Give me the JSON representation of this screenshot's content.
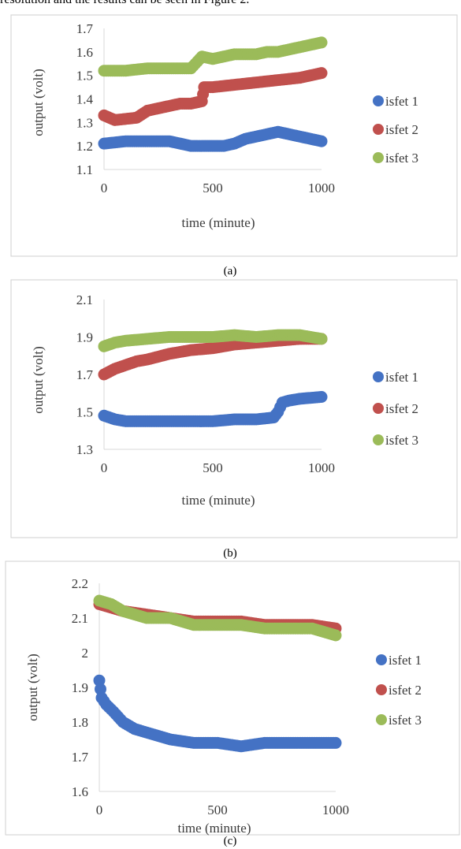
{
  "intro_text": "resolution and the results can be seen in Figure 2.",
  "colors": {
    "isfet1": "#4472C4",
    "isfet2": "#C0504D",
    "isfet3": "#9BBB59"
  },
  "chart_data": [
    {
      "type": "scatter",
      "caption": "(a)",
      "xlabel": "time (minute)",
      "ylabel": "output (volt)",
      "xlim": [
        0,
        1000
      ],
      "ylim": [
        1.1,
        1.7
      ],
      "xticks": [
        "0",
        "500",
        "1000"
      ],
      "yticks": [
        "1.1",
        "1.2",
        "1.3",
        "1.4",
        "1.5",
        "1.6",
        "1.7"
      ],
      "legend_position": "right",
      "grid": false,
      "series": [
        {
          "name": "isfet 1",
          "color": "#4472C4",
          "x": [
            0,
            100,
            200,
            300,
            400,
            450,
            500,
            550,
            600,
            650,
            700,
            750,
            800,
            850,
            900,
            950,
            1000
          ],
          "y": [
            1.21,
            1.22,
            1.22,
            1.22,
            1.2,
            1.2,
            1.2,
            1.2,
            1.21,
            1.23,
            1.24,
            1.25,
            1.26,
            1.25,
            1.24,
            1.23,
            1.22
          ]
        },
        {
          "name": "isfet 2",
          "color": "#C0504D",
          "x": [
            0,
            50,
            150,
            200,
            250,
            300,
            350,
            400,
            450,
            460,
            500,
            600,
            700,
            800,
            900,
            1000
          ],
          "y": [
            1.33,
            1.31,
            1.32,
            1.35,
            1.36,
            1.37,
            1.38,
            1.38,
            1.39,
            1.45,
            1.45,
            1.46,
            1.47,
            1.48,
            1.49,
            1.51
          ]
        },
        {
          "name": "isfet 3",
          "color": "#9BBB59",
          "x": [
            0,
            100,
            200,
            300,
            400,
            420,
            450,
            500,
            600,
            700,
            750,
            800,
            900,
            1000
          ],
          "y": [
            1.52,
            1.52,
            1.53,
            1.53,
            1.53,
            1.55,
            1.58,
            1.57,
            1.59,
            1.59,
            1.6,
            1.6,
            1.62,
            1.64
          ]
        }
      ]
    },
    {
      "type": "scatter",
      "caption": "(b)",
      "xlabel": "time (minute)",
      "ylabel": "output (volt)",
      "xlim": [
        0,
        1000
      ],
      "ylim": [
        1.3,
        2.1
      ],
      "xticks": [
        "0",
        "500",
        "1000"
      ],
      "yticks": [
        "1.3",
        "1.5",
        "1.7",
        "1.9",
        "2.1"
      ],
      "legend_position": "right",
      "grid": false,
      "series": [
        {
          "name": "isfet 1",
          "color": "#4472C4",
          "x": [
            0,
            50,
            100,
            200,
            300,
            400,
            500,
            600,
            700,
            780,
            800,
            820,
            850,
            900,
            1000
          ],
          "y": [
            1.48,
            1.46,
            1.45,
            1.45,
            1.45,
            1.45,
            1.45,
            1.46,
            1.46,
            1.47,
            1.5,
            1.55,
            1.56,
            1.57,
            1.58
          ]
        },
        {
          "name": "isfet 2",
          "color": "#C0504D",
          "x": [
            0,
            50,
            100,
            150,
            200,
            300,
            400,
            500,
            600,
            700,
            800,
            900,
            1000
          ],
          "y": [
            1.7,
            1.73,
            1.75,
            1.77,
            1.78,
            1.81,
            1.83,
            1.84,
            1.86,
            1.87,
            1.88,
            1.89,
            1.89
          ]
        },
        {
          "name": "isfet 3",
          "color": "#9BBB59",
          "x": [
            0,
            50,
            100,
            200,
            300,
            400,
            500,
            600,
            700,
            800,
            900,
            1000
          ],
          "y": [
            1.85,
            1.87,
            1.88,
            1.89,
            1.9,
            1.9,
            1.9,
            1.91,
            1.9,
            1.91,
            1.91,
            1.89
          ]
        }
      ]
    },
    {
      "type": "scatter",
      "caption": "(c)",
      "xlabel": "time (minute)",
      "ylabel": "output (volt)",
      "xlim": [
        0,
        1000
      ],
      "ylim": [
        1.6,
        2.2
      ],
      "xticks": [
        "0",
        "500",
        "1000"
      ],
      "yticks": [
        "1.6",
        "1.7",
        "1.8",
        "1.9",
        "2",
        "2.1",
        "2.2"
      ],
      "legend_position": "right",
      "grid": false,
      "series": [
        {
          "name": "isfet 1",
          "color": "#4472C4",
          "x": [
            0,
            10,
            30,
            60,
            100,
            150,
            200,
            250,
            300,
            400,
            500,
            600,
            700,
            800,
            900,
            1000
          ],
          "y": [
            1.92,
            1.87,
            1.85,
            1.83,
            1.8,
            1.78,
            1.77,
            1.76,
            1.75,
            1.74,
            1.74,
            1.73,
            1.74,
            1.74,
            1.74,
            1.74
          ]
        },
        {
          "name": "isfet 2",
          "color": "#C0504D",
          "x": [
            0,
            50,
            100,
            200,
            300,
            400,
            500,
            600,
            700,
            800,
            900,
            1000
          ],
          "y": [
            2.14,
            2.13,
            2.12,
            2.11,
            2.1,
            2.09,
            2.09,
            2.09,
            2.08,
            2.08,
            2.08,
            2.07
          ]
        },
        {
          "name": "isfet 3",
          "color": "#9BBB59",
          "x": [
            0,
            50,
            100,
            200,
            300,
            400,
            500,
            600,
            700,
            800,
            900,
            1000
          ],
          "y": [
            2.15,
            2.14,
            2.12,
            2.1,
            2.1,
            2.08,
            2.08,
            2.08,
            2.07,
            2.07,
            2.07,
            2.05
          ]
        }
      ]
    }
  ]
}
